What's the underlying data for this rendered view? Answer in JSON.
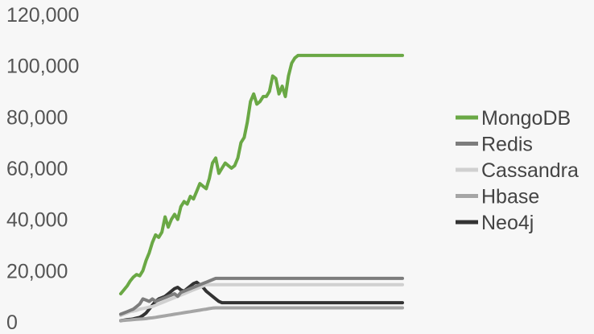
{
  "chart_data": {
    "type": "line",
    "title": "",
    "xlabel": "",
    "ylabel": "",
    "ylim": [
      0,
      120000
    ],
    "y_ticks": [
      {
        "value": 0,
        "label": "0"
      },
      {
        "value": 20000,
        "label": "20,000"
      },
      {
        "value": 40000,
        "label": "40,000"
      },
      {
        "value": 60000,
        "label": "60,000"
      },
      {
        "value": 80000,
        "label": "80,000"
      },
      {
        "value": 100000,
        "label": "100,000"
      },
      {
        "value": 120000,
        "label": "120,000"
      }
    ],
    "grid": false,
    "legend_position": "right",
    "x": [
      1,
      2,
      3,
      4,
      5,
      6,
      7,
      8,
      9,
      10,
      11,
      12,
      13,
      14,
      15,
      16,
      17,
      18,
      19,
      20,
      21,
      22,
      23,
      24,
      25,
      26,
      27,
      28,
      29,
      30,
      31,
      32,
      33,
      34,
      35,
      36,
      37,
      38,
      39,
      40,
      41,
      42,
      43,
      44,
      45,
      46,
      47,
      48,
      49,
      50,
      51,
      52,
      53,
      54,
      55,
      56,
      57,
      58,
      59,
      60,
      61,
      62,
      63,
      64,
      65,
      66,
      67,
      68,
      69,
      70,
      71,
      72,
      73,
      74,
      75,
      76,
      77,
      78,
      79,
      80,
      81,
      82,
      83,
      84,
      85,
      86,
      87,
      88,
      89,
      90
    ],
    "series": [
      {
        "name": "MongoDB",
        "color": "#6aa845",
        "values": [
          11000,
          12500,
          14000,
          16000,
          17500,
          18500,
          18000,
          20000,
          24000,
          27000,
          31000,
          34000,
          33000,
          35000,
          41000,
          37000,
          40000,
          42000,
          40000,
          45000,
          47000,
          46000,
          49000,
          48000,
          51000,
          54000,
          53000,
          52000,
          56000,
          62000,
          64000,
          58000,
          60000,
          62000,
          61000,
          60000,
          61000,
          64000,
          70000,
          72000,
          78000,
          86000,
          89000,
          85000,
          86000,
          88000,
          88000,
          90000,
          96000,
          95000,
          89000,
          92000,
          88000,
          96000,
          101000,
          103000,
          104000,
          104000,
          104000,
          104000,
          104000,
          104000,
          104000,
          104000,
          104000,
          104000,
          104000,
          104000,
          104000,
          104000,
          104000,
          104000,
          104000,
          104000,
          104000,
          104000,
          104000,
          104000,
          104000,
          104000,
          104000,
          104000,
          104000,
          104000,
          104000,
          104000,
          104000,
          104000,
          104000,
          104000
        ]
      },
      {
        "name": "Redis",
        "color": "#7d7d7d",
        "values": [
          3000,
          3500,
          4000,
          4500,
          5000,
          6000,
          7000,
          9000,
          8500,
          8000,
          9000,
          8000,
          8500,
          9000,
          9500,
          10000,
          10500,
          11000,
          10000,
          11500,
          12000,
          12500,
          13000,
          13500,
          14000,
          14500,
          15000,
          15500,
          16000,
          16500,
          17000,
          17000,
          17000,
          17000,
          17000,
          17000,
          17000,
          17000,
          17000,
          17000,
          17000,
          17000,
          17000,
          17000,
          17000,
          17000,
          17000,
          17000,
          17000,
          17000,
          17000,
          17000,
          17000,
          17000,
          17000,
          17000,
          17000,
          17000,
          17000,
          17000,
          17000,
          17000,
          17000,
          17000,
          17000,
          17000,
          17000,
          17000,
          17000,
          17000,
          17000,
          17000,
          17000,
          17000,
          17000,
          17000,
          17000,
          17000,
          17000,
          17000,
          17000,
          17000,
          17000,
          17000,
          17000,
          17000,
          17000,
          17000,
          17000,
          17000
        ]
      },
      {
        "name": "Cassandra",
        "color": "#d0d0d0",
        "values": [
          2500,
          3000,
          3500,
          4000,
          4200,
          4500,
          5000,
          5200,
          5500,
          5800,
          6000,
          6500,
          7000,
          7500,
          8000,
          8500,
          9000,
          9500,
          10000,
          10500,
          11000,
          11500,
          12000,
          12500,
          13000,
          13500,
          14000,
          14500,
          14500,
          14500,
          14500,
          14500,
          14500,
          14500,
          14500,
          14500,
          14500,
          14500,
          14500,
          14500,
          14500,
          14500,
          14500,
          14500,
          14500,
          14500,
          14500,
          14500,
          14500,
          14500,
          14500,
          14500,
          14500,
          14500,
          14500,
          14500,
          14500,
          14500,
          14500,
          14500,
          14500,
          14500,
          14500,
          14500,
          14500,
          14500,
          14500,
          14500,
          14500,
          14500,
          14500,
          14500,
          14500,
          14500,
          14500,
          14500,
          14500,
          14500,
          14500,
          14500,
          14500,
          14500,
          14500,
          14500,
          14500,
          14500,
          14500,
          14500,
          14500,
          14500
        ]
      },
      {
        "name": "Hbase",
        "color": "#a5a5a5",
        "values": [
          500,
          600,
          700,
          800,
          900,
          1000,
          1100,
          1200,
          1300,
          1500,
          1600,
          1800,
          2000,
          2200,
          2400,
          2600,
          2800,
          3000,
          3200,
          3400,
          3600,
          3800,
          4000,
          4200,
          4400,
          4600,
          4800,
          5000,
          5200,
          5400,
          5500,
          5500,
          5500,
          5500,
          5500,
          5500,
          5500,
          5500,
          5500,
          5500,
          5500,
          5500,
          5500,
          5500,
          5500,
          5500,
          5500,
          5500,
          5500,
          5500,
          5500,
          5500,
          5500,
          5500,
          5500,
          5500,
          5500,
          5500,
          5500,
          5500,
          5500,
          5500,
          5500,
          5500,
          5500,
          5500,
          5500,
          5500,
          5500,
          5500,
          5500,
          5500,
          5500,
          5500,
          5500,
          5500,
          5500,
          5500,
          5500,
          5500,
          5500,
          5500,
          5500,
          5500,
          5500,
          5500,
          5500,
          5500,
          5500,
          5500
        ]
      },
      {
        "name": "Neo4j",
        "color": "#333333",
        "values": [
          500,
          700,
          900,
          1000,
          1200,
          1500,
          1800,
          2500,
          3500,
          5000,
          6500,
          8000,
          9000,
          9500,
          10000,
          11000,
          12000,
          13000,
          13500,
          12500,
          12000,
          13000,
          14000,
          15000,
          15500,
          14500,
          13500,
          12000,
          11000,
          10000,
          9000,
          8000,
          7500,
          7500,
          7500,
          7500,
          7500,
          7500,
          7500,
          7500,
          7500,
          7500,
          7500,
          7500,
          7500,
          7500,
          7500,
          7500,
          7500,
          7500,
          7500,
          7500,
          7500,
          7500,
          7500,
          7500,
          7500,
          7500,
          7500,
          7500,
          7500,
          7500,
          7500,
          7500,
          7500,
          7500,
          7500,
          7500,
          7500,
          7500,
          7500,
          7500,
          7500,
          7500,
          7500,
          7500,
          7500,
          7500,
          7500,
          7500,
          7500,
          7500,
          7500,
          7500,
          7500,
          7500,
          7500,
          7500,
          7500,
          7500
        ]
      }
    ]
  }
}
